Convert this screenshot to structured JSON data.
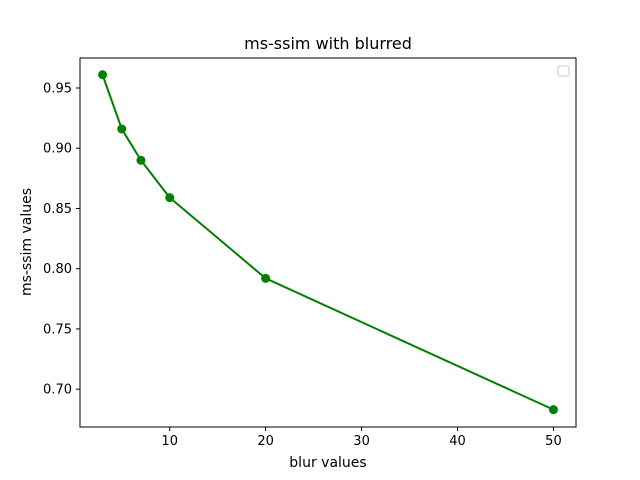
{
  "chart_data": {
    "type": "line",
    "title": "ms-ssim with blurred",
    "xlabel": "blur values",
    "ylabel": "ms-ssim values",
    "x": [
      3,
      5,
      7,
      10,
      20,
      50
    ],
    "series": [
      {
        "values": [
          0.961,
          0.916,
          0.89,
          0.859,
          0.792,
          0.683
        ],
        "color": "#008000",
        "marker": "circle"
      }
    ],
    "xlim": [
      0.65,
      52.35
    ],
    "ylim": [
      0.6686,
      0.9749
    ],
    "xticks": [
      10,
      20,
      30,
      40,
      50
    ],
    "yticks": [
      0.7,
      0.75,
      0.8,
      0.85,
      0.9,
      0.95
    ],
    "grid": false,
    "legend": {
      "position": "top-right",
      "entries": []
    }
  }
}
